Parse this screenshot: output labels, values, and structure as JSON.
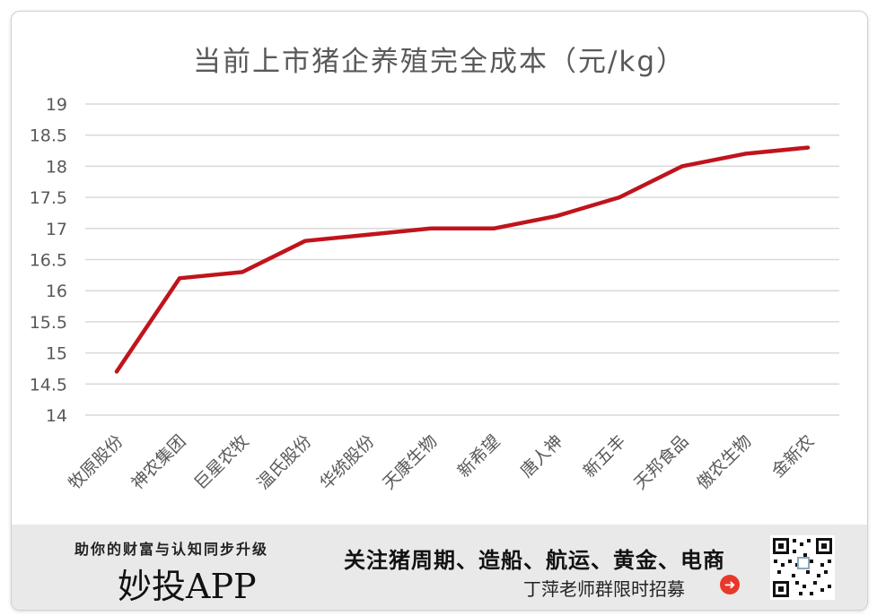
{
  "chart_data": {
    "type": "line",
    "title": "当前上市猪企养殖完全成本（元/kg）",
    "categories": [
      "牧原股份",
      "神农集团",
      "巨星农牧",
      "温氏股份",
      "华统股份",
      "天康生物",
      "新希望",
      "唐人神",
      "新五丰",
      "天邦食品",
      "傲农生物",
      "金新农"
    ],
    "series": [
      {
        "values": [
          14.7,
          16.2,
          16.3,
          16.8,
          16.9,
          17.0,
          17.0,
          17.2,
          17.5,
          18.0,
          18.2,
          18.3
        ]
      }
    ],
    "ylim": [
      14,
      19
    ],
    "yticks": [
      "14",
      "14.5",
      "15",
      "15.5",
      "16",
      "16.5",
      "17",
      "17.5",
      "18",
      "18.5",
      "19"
    ],
    "grid": true,
    "colors": {
      "line": "#c0141c",
      "grid": "#d9d9d9",
      "text": "#595959"
    }
  },
  "footer": {
    "slogan": "助你的财富与认知同步升级",
    "brand": "妙投APP",
    "follow": "关注猪周期、造船、航运、黄金、电商",
    "recruit": "丁萍老师群限时招募",
    "arrow_icon": "right-arrow-icon",
    "qr_icon": "qr-code-icon"
  }
}
